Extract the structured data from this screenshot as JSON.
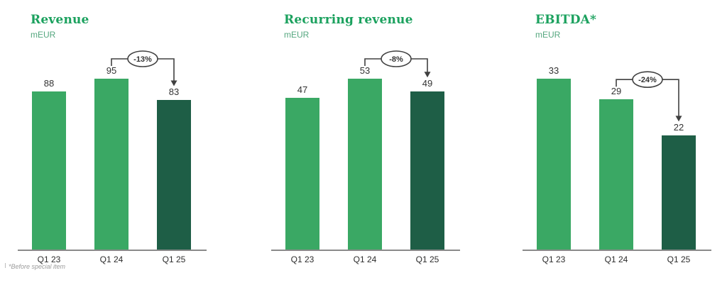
{
  "footnote": "*Before special item",
  "colors": {
    "bar_green": "#3aa864",
    "bar_dark_green": "#1e5e46",
    "title_green": "#1ba15e",
    "unit_green": "#55a77f",
    "axis_line": "#8a8a8a",
    "value_label": "#333333",
    "x_label": "#2d2d2d",
    "annotation_line": "#404040",
    "annotation_text": "#333333"
  },
  "chart_data": [
    {
      "type": "bar",
      "title": "Revenue",
      "subtitle": "mEUR",
      "categories": [
        "Q1 23",
        "Q1 24",
        "Q1 25"
      ],
      "values": [
        88,
        95,
        83
      ],
      "bar_colors": [
        "#3aa864",
        "#3aa864",
        "#1e5e46"
      ],
      "annotation": {
        "label": "-13%",
        "from_category": "Q1 24",
        "to_category": "Q1 25"
      },
      "value_labels_shown": true,
      "grid": false,
      "legend": false,
      "ylim": [
        0,
        95
      ]
    },
    {
      "type": "bar",
      "title": "Recurring revenue",
      "subtitle": "mEUR",
      "categories": [
        "Q1 23",
        "Q1 24",
        "Q1 25"
      ],
      "values": [
        47,
        53,
        49
      ],
      "bar_colors": [
        "#3aa864",
        "#3aa864",
        "#1e5e46"
      ],
      "annotation": {
        "label": "-8%",
        "from_category": "Q1 24",
        "to_category": "Q1 25"
      },
      "value_labels_shown": true,
      "grid": false,
      "legend": false,
      "ylim": [
        0,
        53
      ]
    },
    {
      "type": "bar",
      "title": "EBITDA*",
      "subtitle": "mEUR",
      "categories": [
        "Q1 23",
        "Q1 24",
        "Q1 25"
      ],
      "values": [
        33,
        29,
        22
      ],
      "bar_colors": [
        "#3aa864",
        "#3aa864",
        "#1e5e46"
      ],
      "annotation": {
        "label": "-24%",
        "from_category": "Q1 24",
        "to_category": "Q1 25"
      },
      "value_labels_shown": true,
      "grid": false,
      "legend": false,
      "ylim": [
        0,
        33
      ]
    }
  ]
}
